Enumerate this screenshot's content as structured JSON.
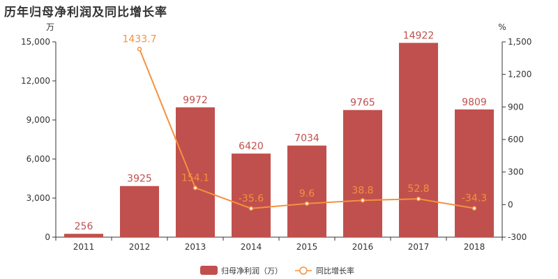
{
  "chart_data": {
    "type": "bar+line",
    "title": "历年归母净利润及同比增长率",
    "categories": [
      "2011",
      "2012",
      "2013",
      "2014",
      "2015",
      "2016",
      "2017",
      "2018"
    ],
    "left_axis": {
      "unit": "万",
      "ylim": [
        0,
        15000
      ],
      "ticks": [
        "0",
        "3,000",
        "6,000",
        "9,000",
        "12,000",
        "15,000"
      ]
    },
    "right_axis": {
      "unit": "%",
      "ylim": [
        -300,
        1500
      ],
      "ticks": [
        "-300",
        "0",
        "300",
        "600",
        "900",
        "1,200",
        "1,500"
      ]
    },
    "series": [
      {
        "name": "归母净利润（万）",
        "type": "bar",
        "color": "#c0504d",
        "values": [
          256,
          3925,
          9972,
          6420,
          7034,
          9765,
          14922,
          9809
        ],
        "labels": [
          "256",
          "3925",
          "9972",
          "6420",
          "7034",
          "9765",
          "14922",
          "9809"
        ]
      },
      {
        "name": "同比增长率",
        "type": "line",
        "color": "#f4913e",
        "values": [
          null,
          1433.7,
          154.1,
          -35.6,
          9.6,
          38.8,
          52.8,
          -34.3
        ],
        "labels": [
          "",
          "1433.7",
          "154.1",
          "-35.6",
          "9.6",
          "38.8",
          "52.8",
          "-34.3"
        ]
      }
    ],
    "legend": "bottom",
    "grid": false
  }
}
